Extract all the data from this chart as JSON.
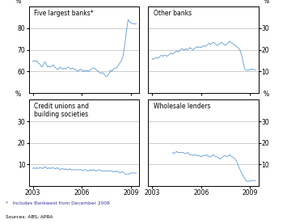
{
  "footnote1": "*   Includes Bankwest from December 2008",
  "footnote2": "Sources: ABS; APRA",
  "line_color": "#5b9bd5",
  "bg_color": "#ffffff",
  "grid_color": "#aaaaaa",
  "text_color_blue": "#333399",
  "panels": [
    {
      "label": "Five largest banks*",
      "label_multiline": false,
      "ylim": [
        50,
        90
      ],
      "yticks": [
        60,
        70,
        80
      ],
      "yticklabels": [
        "60",
        "70",
        "80"
      ],
      "side": "left",
      "x_start_year": 2002.75,
      "x_end_year": 2009.5,
      "xticks": [
        2003,
        2006,
        2009
      ],
      "show_xtick_labels": false,
      "data_x": [
        2003.0,
        2003.08,
        2003.17,
        2003.25,
        2003.33,
        2003.42,
        2003.5,
        2003.58,
        2003.67,
        2003.75,
        2003.83,
        2003.92,
        2004.0,
        2004.08,
        2004.17,
        2004.25,
        2004.33,
        2004.42,
        2004.5,
        2004.58,
        2004.67,
        2004.75,
        2004.83,
        2004.92,
        2005.0,
        2005.08,
        2005.17,
        2005.25,
        2005.33,
        2005.42,
        2005.5,
        2005.58,
        2005.67,
        2005.75,
        2005.83,
        2005.92,
        2006.0,
        2006.08,
        2006.17,
        2006.25,
        2006.33,
        2006.42,
        2006.5,
        2006.58,
        2006.67,
        2006.75,
        2006.83,
        2006.92,
        2007.0,
        2007.08,
        2007.17,
        2007.25,
        2007.33,
        2007.42,
        2007.5,
        2007.58,
        2007.67,
        2007.75,
        2007.83,
        2007.92,
        2008.0,
        2008.08,
        2008.17,
        2008.25,
        2008.33,
        2008.42,
        2008.5,
        2008.58,
        2008.67,
        2008.75,
        2008.83,
        2008.92,
        2009.0,
        2009.17,
        2009.33
      ],
      "data_y": [
        64.5,
        65.0,
        64.5,
        65.0,
        64.0,
        63.5,
        62.5,
        62.0,
        63.5,
        64.5,
        63.0,
        62.0,
        62.5,
        62.0,
        62.5,
        63.0,
        62.0,
        61.5,
        61.0,
        61.0,
        62.0,
        61.5,
        61.0,
        61.5,
        61.0,
        61.5,
        62.0,
        61.5,
        61.0,
        61.5,
        61.0,
        61.0,
        60.5,
        60.0,
        60.5,
        61.0,
        60.5,
        60.0,
        60.5,
        60.0,
        60.5,
        60.0,
        60.5,
        61.0,
        61.5,
        61.5,
        61.0,
        60.5,
        60.0,
        59.5,
        59.0,
        59.5,
        59.0,
        58.0,
        57.5,
        58.0,
        59.0,
        60.5,
        60.0,
        61.0,
        61.5,
        61.5,
        62.0,
        63.0,
        64.0,
        65.0,
        66.5,
        70.0,
        75.0,
        80.0,
        84.0,
        83.0,
        82.5,
        82.0,
        82.0
      ]
    },
    {
      "label": "Other banks",
      "label_multiline": false,
      "ylim": [
        0,
        40
      ],
      "yticks": [
        10,
        20,
        30
      ],
      "yticklabels": [
        "10",
        "20",
        "30"
      ],
      "side": "right",
      "x_start_year": 2002.75,
      "x_end_year": 2009.5,
      "xticks": [
        2003,
        2006,
        2009
      ],
      "show_xtick_labels": false,
      "data_x": [
        2003.0,
        2003.08,
        2003.17,
        2003.25,
        2003.33,
        2003.42,
        2003.5,
        2003.58,
        2003.67,
        2003.75,
        2003.83,
        2003.92,
        2004.0,
        2004.08,
        2004.17,
        2004.25,
        2004.33,
        2004.42,
        2004.5,
        2004.58,
        2004.67,
        2004.75,
        2004.83,
        2004.92,
        2005.0,
        2005.08,
        2005.17,
        2005.25,
        2005.33,
        2005.42,
        2005.5,
        2005.58,
        2005.67,
        2005.75,
        2005.83,
        2005.92,
        2006.0,
        2006.08,
        2006.17,
        2006.25,
        2006.33,
        2006.42,
        2006.5,
        2006.58,
        2006.67,
        2006.75,
        2006.83,
        2006.92,
        2007.0,
        2007.08,
        2007.17,
        2007.25,
        2007.33,
        2007.42,
        2007.5,
        2007.58,
        2007.67,
        2007.75,
        2007.83,
        2007.92,
        2008.0,
        2008.08,
        2008.17,
        2008.25,
        2008.33,
        2008.42,
        2008.5,
        2008.58,
        2008.67,
        2008.75,
        2008.83,
        2008.92,
        2009.0,
        2009.17,
        2009.33
      ],
      "data_y": [
        16.0,
        15.5,
        16.0,
        16.5,
        16.0,
        16.5,
        17.0,
        17.5,
        17.0,
        17.5,
        17.5,
        17.0,
        17.5,
        18.0,
        18.5,
        18.0,
        18.5,
        19.0,
        19.5,
        19.0,
        19.5,
        20.0,
        20.5,
        20.0,
        20.0,
        20.5,
        20.0,
        20.5,
        21.0,
        20.5,
        20.0,
        20.5,
        21.0,
        21.5,
        21.0,
        21.5,
        21.0,
        21.5,
        22.0,
        21.5,
        22.0,
        22.5,
        23.0,
        22.5,
        23.0,
        23.5,
        23.0,
        22.5,
        22.0,
        22.5,
        23.0,
        23.5,
        23.0,
        22.5,
        22.0,
        22.5,
        23.5,
        24.0,
        23.5,
        23.0,
        22.5,
        22.0,
        21.5,
        21.0,
        20.5,
        19.0,
        17.0,
        14.0,
        11.0,
        10.5,
        10.5,
        10.5,
        11.0,
        11.0,
        10.5
      ]
    },
    {
      "label": "Credit unions and\nbuilding societies",
      "label_multiline": true,
      "ylim": [
        0,
        40
      ],
      "yticks": [
        10,
        20,
        30
      ],
      "yticklabels": [
        "10",
        "20",
        "30"
      ],
      "side": "left",
      "x_start_year": 2002.75,
      "x_end_year": 2009.5,
      "xticks": [
        2003,
        2006,
        2009
      ],
      "show_xtick_labels": true,
      "data_x": [
        2003.0,
        2003.08,
        2003.17,
        2003.25,
        2003.33,
        2003.42,
        2003.5,
        2003.58,
        2003.67,
        2003.75,
        2003.83,
        2003.92,
        2004.0,
        2004.08,
        2004.17,
        2004.25,
        2004.33,
        2004.42,
        2004.5,
        2004.58,
        2004.67,
        2004.75,
        2004.83,
        2004.92,
        2005.0,
        2005.08,
        2005.17,
        2005.25,
        2005.33,
        2005.42,
        2005.5,
        2005.58,
        2005.67,
        2005.75,
        2005.83,
        2005.92,
        2006.0,
        2006.08,
        2006.17,
        2006.25,
        2006.33,
        2006.42,
        2006.5,
        2006.58,
        2006.67,
        2006.75,
        2006.83,
        2006.92,
        2007.0,
        2007.08,
        2007.17,
        2007.25,
        2007.33,
        2007.42,
        2007.5,
        2007.58,
        2007.67,
        2007.75,
        2007.83,
        2007.92,
        2008.0,
        2008.08,
        2008.17,
        2008.25,
        2008.33,
        2008.42,
        2008.5,
        2008.58,
        2008.67,
        2008.75,
        2008.83,
        2008.92,
        2009.0,
        2009.17,
        2009.33
      ],
      "data_y": [
        8.0,
        8.5,
        8.0,
        8.5,
        8.0,
        8.5,
        8.5,
        8.0,
        8.5,
        9.0,
        8.5,
        8.0,
        8.5,
        8.0,
        8.5,
        8.5,
        8.0,
        8.0,
        8.5,
        8.0,
        7.5,
        8.0,
        8.0,
        7.5,
        8.0,
        7.5,
        7.5,
        8.0,
        7.5,
        7.5,
        7.5,
        7.5,
        7.5,
        7.5,
        7.5,
        7.5,
        7.5,
        7.0,
        7.5,
        7.5,
        7.0,
        7.0,
        7.5,
        7.0,
        7.5,
        7.5,
        7.0,
        7.0,
        7.5,
        7.5,
        7.0,
        7.0,
        7.0,
        7.0,
        7.0,
        7.0,
        7.0,
        7.0,
        7.0,
        6.5,
        6.5,
        7.0,
        6.5,
        6.5,
        6.0,
        6.5,
        6.5,
        6.0,
        5.5,
        5.5,
        5.5,
        5.5,
        6.0,
        6.0,
        6.0
      ]
    },
    {
      "label": "Wholesale lenders",
      "label_multiline": false,
      "ylim": [
        0,
        40
      ],
      "yticks": [
        10,
        20,
        30
      ],
      "yticklabels": [
        "10",
        "20",
        "30"
      ],
      "side": "right",
      "x_start_year": 2002.75,
      "x_end_year": 2009.5,
      "xticks": [
        2003,
        2006,
        2009
      ],
      "show_xtick_labels": true,
      "data_x": [
        2004.25,
        2004.33,
        2004.42,
        2004.5,
        2004.58,
        2004.67,
        2004.75,
        2004.83,
        2004.92,
        2005.0,
        2005.08,
        2005.17,
        2005.25,
        2005.33,
        2005.42,
        2005.5,
        2005.58,
        2005.67,
        2005.75,
        2005.83,
        2005.92,
        2006.0,
        2006.08,
        2006.17,
        2006.25,
        2006.33,
        2006.42,
        2006.5,
        2006.58,
        2006.67,
        2006.75,
        2006.83,
        2006.92,
        2007.0,
        2007.08,
        2007.17,
        2007.25,
        2007.33,
        2007.42,
        2007.5,
        2007.58,
        2007.67,
        2007.75,
        2007.83,
        2007.92,
        2008.0,
        2008.08,
        2008.17,
        2008.25,
        2008.33,
        2008.42,
        2008.5,
        2008.58,
        2008.67,
        2008.75,
        2008.83,
        2008.92,
        2009.0,
        2009.17,
        2009.33
      ],
      "data_y": [
        15.5,
        15.0,
        15.5,
        16.0,
        15.5,
        15.5,
        15.5,
        15.5,
        15.5,
        15.0,
        15.0,
        15.5,
        15.0,
        14.5,
        14.5,
        14.0,
        14.5,
        14.5,
        14.0,
        14.0,
        14.0,
        13.5,
        14.0,
        14.0,
        14.0,
        14.5,
        14.0,
        13.5,
        13.5,
        14.0,
        14.5,
        14.0,
        13.5,
        13.5,
        13.0,
        12.5,
        13.0,
        13.5,
        14.0,
        14.0,
        13.5,
        14.0,
        14.5,
        14.0,
        13.5,
        13.0,
        12.5,
        11.5,
        10.0,
        8.5,
        7.0,
        5.5,
        4.5,
        3.5,
        2.5,
        2.0,
        2.0,
        2.5,
        2.5,
        2.5
      ]
    }
  ]
}
